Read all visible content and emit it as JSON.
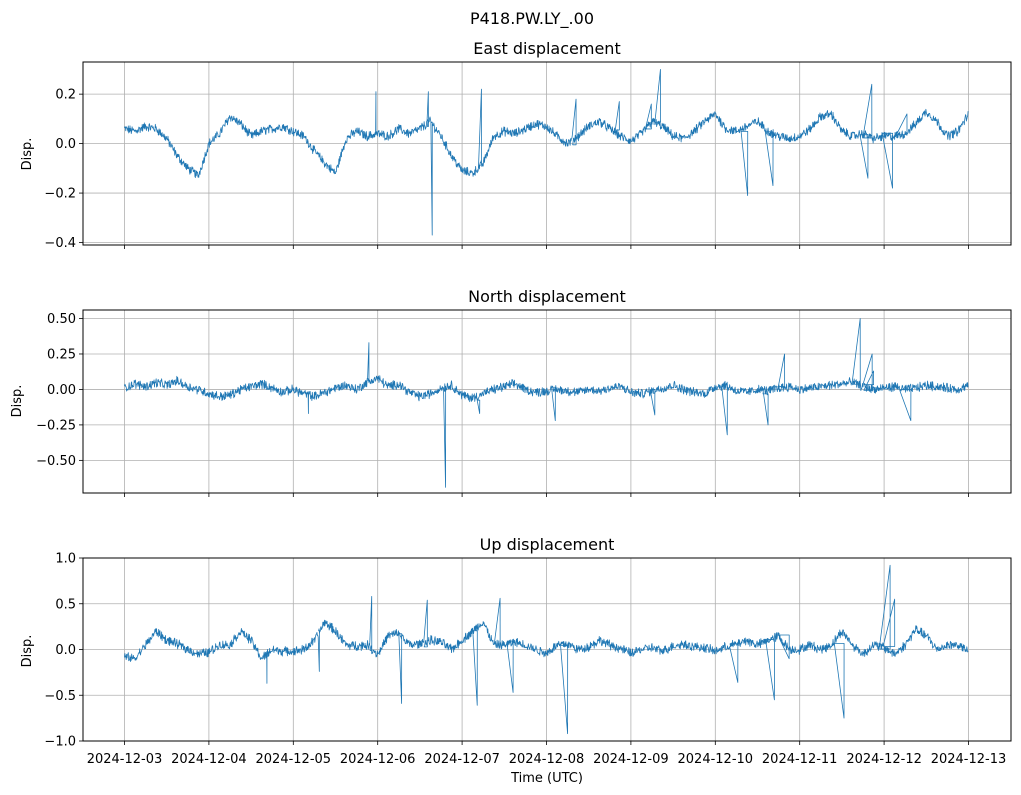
{
  "suptitle": "P418.PW.LY_.00",
  "colors": {
    "line": "#1f77b4",
    "grid": "#b0b0b0",
    "axes": "#000000"
  },
  "chart_data": [
    {
      "type": "line",
      "title": "East displacement",
      "xlabel": "",
      "ylabel": "Disp.",
      "xlim": [
        "2024-12-03",
        "2024-12-13"
      ],
      "ylim": [
        -0.41,
        0.33
      ],
      "yticks": [
        -0.4,
        -0.2,
        0.0,
        0.2
      ],
      "ytick_labels": [
        "−0.4",
        "−0.2",
        "0.0",
        "0.2"
      ],
      "xtick_labels_visible": false,
      "grid": true,
      "x_hours": [
        0,
        3,
        6,
        9,
        12,
        15,
        18,
        21,
        24,
        27,
        30,
        33,
        36,
        39,
        42,
        45,
        48,
        51,
        54,
        57,
        60,
        63,
        66,
        69,
        72,
        75,
        78,
        81,
        84,
        87,
        90,
        93,
        96,
        99,
        102,
        105,
        108,
        111,
        114,
        117,
        120,
        123,
        126,
        129,
        132,
        135,
        138,
        141,
        144,
        147,
        150,
        153,
        156,
        159,
        162,
        165,
        168,
        171,
        174,
        177,
        180,
        183,
        186,
        189,
        192,
        195,
        198,
        201,
        204,
        207,
        210,
        213,
        216,
        219,
        222,
        225,
        228,
        231,
        234,
        237,
        240
      ],
      "values": [
        0.06,
        0.05,
        0.07,
        0.06,
        0.02,
        -0.05,
        -0.1,
        -0.13,
        0.0,
        0.04,
        0.11,
        0.08,
        0.03,
        0.05,
        0.06,
        0.07,
        0.05,
        0.03,
        -0.03,
        -0.08,
        -0.12,
        0.02,
        0.05,
        0.03,
        0.04,
        0.03,
        0.06,
        0.04,
        0.06,
        0.09,
        0.03,
        -0.05,
        -0.11,
        -0.12,
        -0.08,
        0.03,
        0.05,
        0.04,
        0.06,
        0.08,
        0.07,
        0.03,
        0.0,
        0.03,
        0.07,
        0.09,
        0.06,
        0.03,
        0.01,
        0.04,
        0.09,
        0.07,
        0.03,
        0.02,
        0.05,
        0.09,
        0.12,
        0.06,
        0.05,
        0.07,
        0.09,
        0.05,
        0.03,
        0.02,
        0.03,
        0.06,
        0.11,
        0.12,
        0.05,
        0.03,
        0.04,
        0.02,
        0.03,
        0.03,
        0.04,
        0.08,
        0.13,
        0.09,
        0.03,
        0.05,
        0.12
      ],
      "spikes": [
        [
          71.5,
          0.21
        ],
        [
          87.5,
          -0.37
        ],
        [
          86.4,
          0.21
        ],
        [
          101.5,
          0.22
        ],
        [
          128.4,
          0.18
        ],
        [
          140.7,
          0.17
        ],
        [
          152.4,
          0.3
        ],
        [
          149.8,
          0.16
        ],
        [
          177.2,
          -0.21
        ],
        [
          184.4,
          -0.17
        ],
        [
          212.5,
          0.24
        ],
        [
          211.4,
          -0.14
        ],
        [
          218.4,
          -0.18
        ],
        [
          222.5,
          0.12
        ]
      ]
    },
    {
      "type": "line",
      "title": "North displacement",
      "xlabel": "",
      "ylabel": "Disp.",
      "xlim": [
        "2024-12-03",
        "2024-12-13"
      ],
      "ylim": [
        -0.73,
        0.56
      ],
      "yticks": [
        -0.5,
        -0.25,
        0.0,
        0.25,
        0.5
      ],
      "ytick_labels": [
        "−0.50",
        "−0.25",
        "0.00",
        "0.25",
        "0.50"
      ],
      "xtick_labels_visible": false,
      "grid": true,
      "x_hours": [
        0,
        3,
        6,
        9,
        12,
        15,
        18,
        21,
        24,
        27,
        30,
        33,
        36,
        39,
        42,
        45,
        48,
        51,
        54,
        57,
        60,
        63,
        66,
        69,
        72,
        75,
        78,
        81,
        84,
        87,
        90,
        93,
        96,
        99,
        102,
        105,
        108,
        111,
        114,
        117,
        120,
        123,
        126,
        129,
        132,
        135,
        138,
        141,
        144,
        147,
        150,
        153,
        156,
        159,
        162,
        165,
        168,
        171,
        174,
        177,
        180,
        183,
        186,
        189,
        192,
        195,
        198,
        201,
        204,
        207,
        210,
        213,
        216,
        219,
        222,
        225,
        228,
        231,
        234,
        237,
        240
      ],
      "values": [
        0.01,
        0.04,
        0.02,
        0.05,
        0.03,
        0.06,
        0.02,
        0.0,
        -0.03,
        -0.05,
        -0.04,
        0.0,
        0.02,
        0.04,
        0.01,
        -0.02,
        0.0,
        -0.03,
        -0.05,
        -0.02,
        0.01,
        0.03,
        0.0,
        0.05,
        0.08,
        0.02,
        0.04,
        -0.02,
        -0.05,
        -0.03,
        0.01,
        0.03,
        -0.04,
        -0.06,
        -0.03,
        0.0,
        0.02,
        0.04,
        0.0,
        -0.02,
        -0.01,
        0.0,
        -0.01,
        -0.02,
        0.0,
        -0.01,
        0.01,
        0.02,
        -0.02,
        -0.03,
        -0.01,
        0.01,
        0.03,
        0.0,
        -0.02,
        -0.03,
        0.02,
        0.03,
        -0.01,
        -0.02,
        0.0,
        -0.01,
        0.01,
        0.02,
        0.0,
        0.01,
        0.02,
        0.03,
        0.04,
        0.05,
        0.02,
        0.0,
        0.01,
        0.02,
        0.0,
        0.01,
        0.03,
        0.02,
        0.01,
        0.0,
        0.03
      ],
      "spikes": [
        [
          52.3,
          -0.17
        ],
        [
          69.5,
          0.33
        ],
        [
          91.3,
          -0.69
        ],
        [
          101.0,
          -0.17
        ],
        [
          122.5,
          -0.22
        ],
        [
          150.8,
          -0.18
        ],
        [
          183.0,
          -0.25
        ],
        [
          171.4,
          -0.32
        ],
        [
          187.7,
          0.25
        ],
        [
          209.2,
          0.5
        ],
        [
          212.6,
          0.25
        ],
        [
          213.0,
          0.13
        ],
        [
          223.6,
          -0.22
        ]
      ]
    },
    {
      "type": "line",
      "title": "Up displacement",
      "xlabel": "Time (UTC)",
      "ylabel": "Disp.",
      "xlim": [
        "2024-12-03",
        "2024-12-13"
      ],
      "ylim": [
        -1.0,
        1.0
      ],
      "yticks": [
        -1.0,
        -0.5,
        0.0,
        0.5,
        1.0
      ],
      "ytick_labels": [
        "−1.0",
        "−0.5",
        "0.0",
        "0.5",
        "1.0"
      ],
      "xtick_labels_visible": true,
      "grid": true,
      "x_hours": [
        0,
        3,
        6,
        9,
        12,
        15,
        18,
        21,
        24,
        27,
        30,
        33,
        36,
        39,
        42,
        45,
        48,
        51,
        54,
        57,
        60,
        63,
        66,
        69,
        72,
        75,
        78,
        81,
        84,
        87,
        90,
        93,
        96,
        99,
        102,
        105,
        108,
        111,
        114,
        117,
        120,
        123,
        126,
        129,
        132,
        135,
        138,
        141,
        144,
        147,
        150,
        153,
        156,
        159,
        162,
        165,
        168,
        171,
        174,
        177,
        180,
        183,
        186,
        189,
        192,
        195,
        198,
        201,
        204,
        207,
        210,
        213,
        216,
        219,
        222,
        225,
        228,
        231,
        234,
        237,
        240
      ],
      "values": [
        -0.08,
        -0.1,
        0.05,
        0.2,
        0.1,
        0.06,
        0.0,
        -0.05,
        -0.03,
        0.05,
        0.05,
        0.2,
        0.1,
        -0.1,
        0.0,
        -0.02,
        -0.02,
        0.0,
        0.1,
        0.3,
        0.2,
        0.05,
        0.04,
        0.05,
        -0.05,
        0.15,
        0.18,
        0.05,
        0.06,
        0.1,
        0.08,
        0.0,
        0.1,
        0.2,
        0.3,
        0.05,
        0.05,
        0.08,
        0.05,
        0.0,
        -0.04,
        0.05,
        0.06,
        0.0,
        0.03,
        0.1,
        0.05,
        0.01,
        -0.04,
        0.0,
        0.02,
        -0.02,
        0.04,
        0.06,
        0.03,
        0.02,
        -0.02,
        0.03,
        0.06,
        0.1,
        0.05,
        0.1,
        0.15,
        0.0,
        0.0,
        0.05,
        0.0,
        0.05,
        0.2,
        0.05,
        -0.05,
        0.05,
        0.02,
        -0.05,
        0.05,
        0.22,
        0.15,
        0.0,
        0.05,
        0.05,
        -0.02
      ],
      "spikes": [
        [
          40.5,
          -0.37
        ],
        [
          55.4,
          -0.24
        ],
        [
          70.3,
          0.58
        ],
        [
          78.8,
          -0.59
        ],
        [
          86.1,
          0.54
        ],
        [
          100.3,
          -0.61
        ],
        [
          106.8,
          0.56
        ],
        [
          110.5,
          -0.47
        ],
        [
          126.0,
          -0.92
        ],
        [
          174.4,
          -0.36
        ],
        [
          184.8,
          -0.55
        ],
        [
          204.6,
          -0.75
        ],
        [
          217.7,
          0.92
        ],
        [
          219.0,
          0.55
        ],
        [
          189.0,
          -0.1
        ]
      ]
    }
  ],
  "xtick_labels": [
    "2024-12-03",
    "2024-12-04",
    "2024-12-05",
    "2024-12-06",
    "2024-12-07",
    "2024-12-08",
    "2024-12-09",
    "2024-12-10",
    "2024-12-11",
    "2024-12-12",
    "2024-12-13"
  ]
}
